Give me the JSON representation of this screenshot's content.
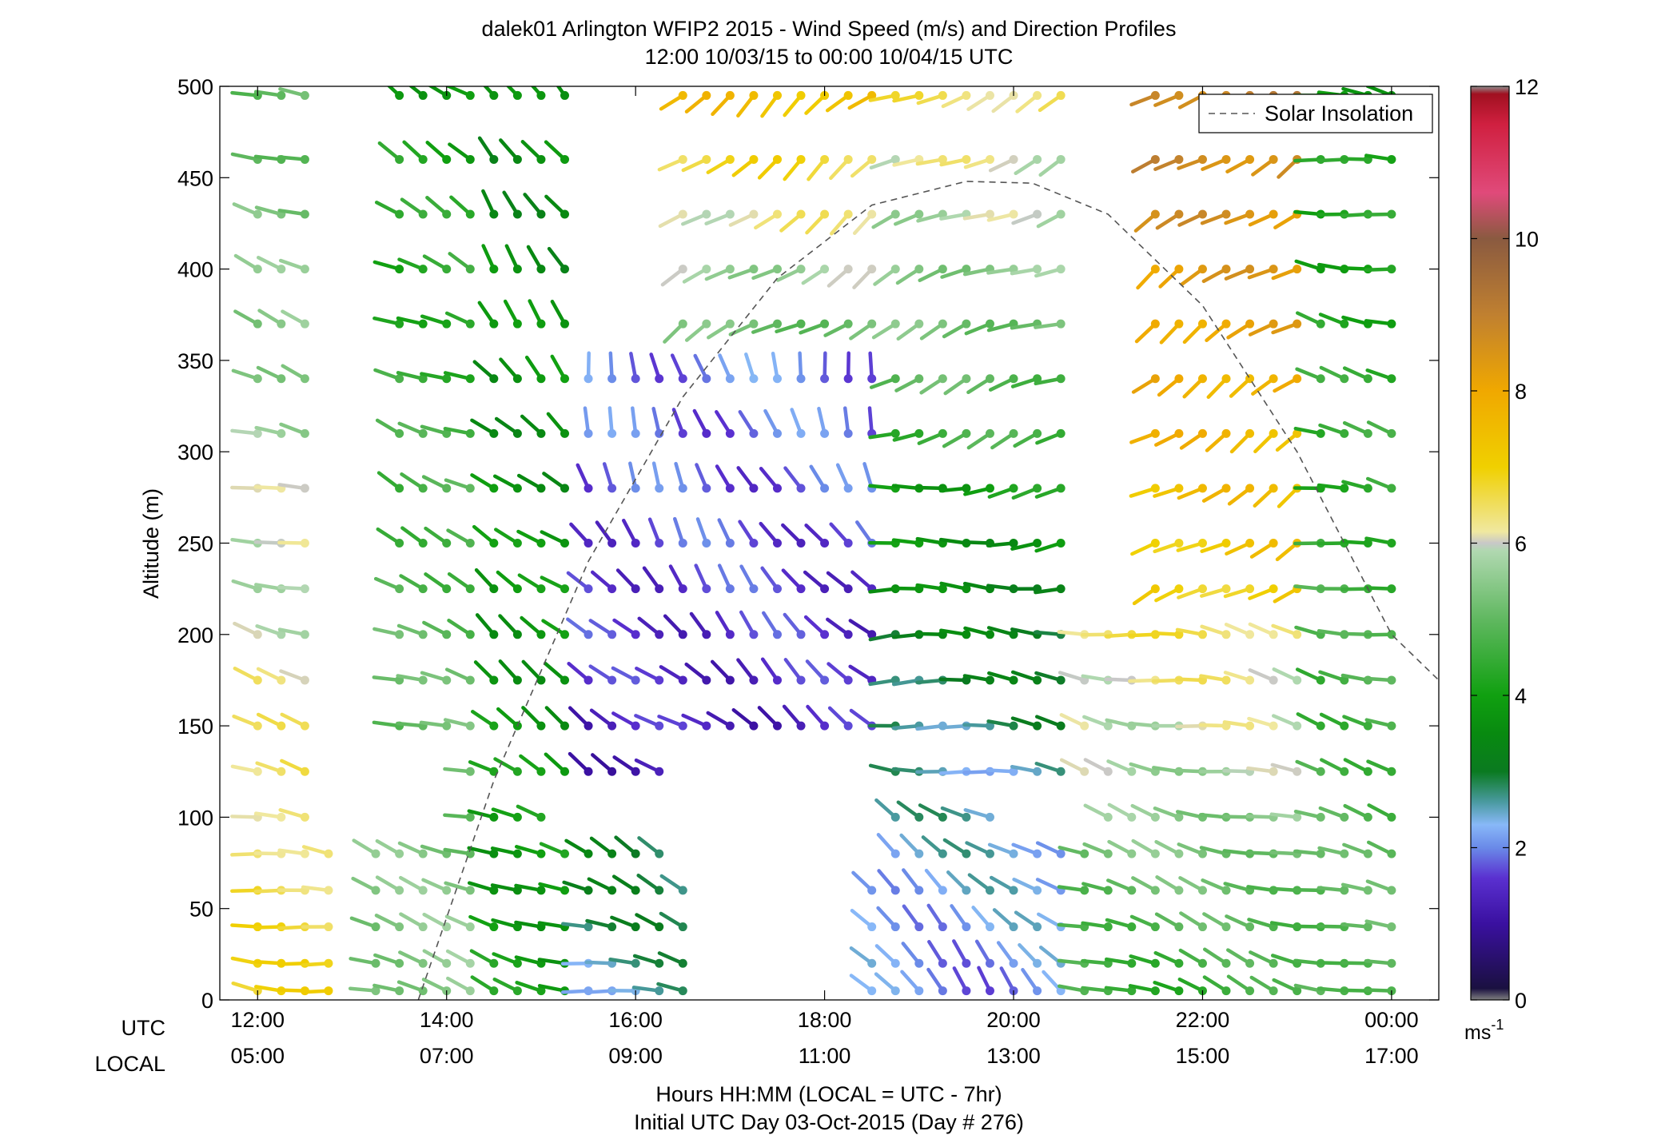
{
  "chart_data": {
    "type": "wind-barb-profile",
    "title": "dalek01 Arlington WFIP2 2015 - Wind Speed (m/s) and Direction Profiles",
    "subtitle": "12:00 10/03/15 to 00:00 10/04/15  UTC",
    "ylabel": "Altitude (m)",
    "xlabel": "Hours HH:MM  (LOCAL = UTC - 7hr)",
    "xlabel2": "Initial UTC Day 03-Oct-2015 (Day # 276)",
    "row_label_utc": "UTC",
    "row_label_local": "LOCAL",
    "x_unit": "UTC hours from 12:00 10/03/15",
    "xlim": [
      11.6,
      24.5
    ],
    "ylim": [
      0,
      500
    ],
    "x_ticks": [
      {
        "x": 12,
        "utc": "12:00",
        "local": "05:00"
      },
      {
        "x": 14,
        "utc": "14:00",
        "local": "07:00"
      },
      {
        "x": 16,
        "utc": "16:00",
        "local": "09:00"
      },
      {
        "x": 18,
        "utc": "18:00",
        "local": "11:00"
      },
      {
        "x": 20,
        "utc": "20:00",
        "local": "13:00"
      },
      {
        "x": 22,
        "utc": "22:00",
        "local": "15:00"
      },
      {
        "x": 24,
        "utc": "00:00",
        "local": "17:00"
      }
    ],
    "y_ticks": [
      "0",
      "50",
      "100",
      "150",
      "200",
      "250",
      "300",
      "350",
      "400",
      "450",
      "500"
    ],
    "y_tick_values": [
      0,
      50,
      100,
      150,
      200,
      250,
      300,
      350,
      400,
      450,
      500
    ],
    "legend": {
      "label": "Solar Insolation",
      "position": "top-right"
    },
    "colorbar": {
      "min": 0,
      "max": 12,
      "ticks": [
        "0",
        "2",
        "4",
        "6",
        "8",
        "10",
        "12"
      ],
      "tick_values": [
        0,
        2,
        4,
        6,
        8,
        10,
        12
      ],
      "unit_base": "ms",
      "unit_exp": "-1",
      "stops": [
        {
          "v": 0,
          "c": "#808080"
        },
        {
          "v": 0.15,
          "c": "#1a1040"
        },
        {
          "v": 1.0,
          "c": "#3a10a0"
        },
        {
          "v": 1.6,
          "c": "#5a30d0"
        },
        {
          "v": 2.0,
          "c": "#6a8ae8"
        },
        {
          "v": 2.3,
          "c": "#88b8f8"
        },
        {
          "v": 2.6,
          "c": "#4a9aa0"
        },
        {
          "v": 3.0,
          "c": "#0a7a20"
        },
        {
          "v": 3.5,
          "c": "#088a10"
        },
        {
          "v": 4.0,
          "c": "#10a010"
        },
        {
          "v": 5.0,
          "c": "#60b860"
        },
        {
          "v": 5.9,
          "c": "#b0d8b0"
        },
        {
          "v": 6.0,
          "c": "#c8c8c8"
        },
        {
          "v": 6.15,
          "c": "#f0e8a0"
        },
        {
          "v": 7.0,
          "c": "#f0d000"
        },
        {
          "v": 8.0,
          "c": "#f0a800"
        },
        {
          "v": 9.0,
          "c": "#c08030"
        },
        {
          "v": 10.0,
          "c": "#8a5a40"
        },
        {
          "v": 10.6,
          "c": "#e04a7a"
        },
        {
          "v": 11.5,
          "c": "#d02040"
        },
        {
          "v": 11.9,
          "c": "#a01020"
        },
        {
          "v": 12,
          "c": "#909090"
        }
      ]
    },
    "altitudes": [
      5,
      20,
      40,
      60,
      80,
      100,
      125,
      150,
      175,
      200,
      225,
      250,
      280,
      310,
      340,
      370,
      400,
      430,
      460,
      495
    ],
    "times": [
      12,
      12.25,
      12.5,
      12.75,
      13.25,
      13.5,
      13.75,
      14,
      14.25,
      14.5,
      14.75,
      15,
      15.25,
      15.5,
      15.75,
      16,
      16.25,
      16.5,
      16.75,
      17,
      17.25,
      17.5,
      17.75,
      18,
      18.25,
      18.5,
      18.75,
      19,
      19.25,
      19.5,
      19.75,
      20,
      20.25,
      20.5,
      20.75,
      21,
      21.25,
      21.5,
      21.75,
      22,
      22.25,
      22.5,
      22.75,
      23,
      23.25,
      23.5,
      23.75,
      24
    ],
    "segments": [
      {
        "t": [
          12,
          12.75
        ],
        "s": [
          5,
          500
        ],
        "spd": [
          6.8,
          5.0
        ],
        "dir": [
          280,
          290
        ]
      },
      {
        "t": [
          13.25,
          14.25
        ],
        "s": [
          5,
          500
        ],
        "spd": [
          5.5,
          4.0
        ],
        "dir": [
          285,
          300
        ]
      },
      {
        "t": [
          14.5,
          15.25
        ],
        "s": [
          5,
          500
        ],
        "spd": [
          4.0,
          3.5
        ],
        "dir": [
          290,
          330
        ]
      },
      {
        "t": [
          15.5,
          16.5
        ],
        "s": [
          5,
          100
        ],
        "spd": [
          2.5,
          3.2
        ],
        "dir": [
          280,
          300
        ]
      },
      {
        "t": [
          15.5,
          18.5
        ],
        "s": [
          125,
          350
        ],
        "spd": [
          1.3,
          2.0
        ],
        "dir": [
          300,
          350
        ]
      },
      {
        "t": [
          16.5,
          18.5
        ],
        "s": [
          350,
          500
        ],
        "spd": [
          4.8,
          7.5
        ],
        "dir": [
          240,
          230
        ]
      },
      {
        "t": [
          18.5,
          20.5
        ],
        "s": [
          5,
          100
        ],
        "spd": [
          2.0,
          2.5
        ],
        "dir": [
          320,
          300
        ]
      },
      {
        "t": [
          18.75,
          20.5
        ],
        "s": [
          125,
          300
        ],
        "spd": [
          2.5,
          4.2
        ],
        "dir": [
          280,
          260
        ]
      },
      {
        "t": [
          18.75,
          20.5
        ],
        "s": [
          300,
          500
        ],
        "spd": [
          4.5,
          6.5
        ],
        "dir": [
          250,
          245
        ]
      },
      {
        "t": [
          20.75,
          23.25
        ],
        "s": [
          5,
          200
        ],
        "spd": [
          4.5,
          6.5
        ],
        "dir": [
          290,
          280
        ]
      },
      {
        "t": [
          21.5,
          23.25
        ],
        "s": [
          225,
          500
        ],
        "spd": [
          7.0,
          9.0
        ],
        "dir": [
          240,
          235
        ]
      },
      {
        "t": [
          23.25,
          24
        ],
        "s": [
          5,
          500
        ],
        "spd": [
          5.0,
          4.0
        ],
        "dir": [
          285,
          280
        ]
      }
    ],
    "missing": [
      {
        "t": [
          12.75,
          13.25
        ],
        "s": [
          100,
          500
        ],
        "gap": true
      },
      {
        "t": [
          13.5,
          14.0
        ],
        "s": [
          100,
          125
        ],
        "gap": true
      },
      {
        "t": [
          15.25,
          16.5
        ],
        "s": [
          100,
          100
        ],
        "gap": true
      },
      {
        "t": [
          16.5,
          18.5
        ],
        "s": [
          80,
          125
        ],
        "gap": true
      },
      {
        "t": [
          20.0,
          20.75
        ],
        "s": [
          100,
          100
        ],
        "gap": true
      }
    ],
    "solar_insolation": {
      "style": "dashed",
      "color": "#555555",
      "points": [
        [
          13.7,
          0
        ],
        [
          14.5,
          120
        ],
        [
          15.5,
          240
        ],
        [
          16.5,
          330
        ],
        [
          17.5,
          395
        ],
        [
          18.5,
          435
        ],
        [
          19.5,
          448
        ],
        [
          20.2,
          447
        ],
        [
          21,
          430
        ],
        [
          22,
          380
        ],
        [
          23,
          300
        ],
        [
          24,
          200
        ],
        [
          24.5,
          175
        ]
      ]
    }
  }
}
